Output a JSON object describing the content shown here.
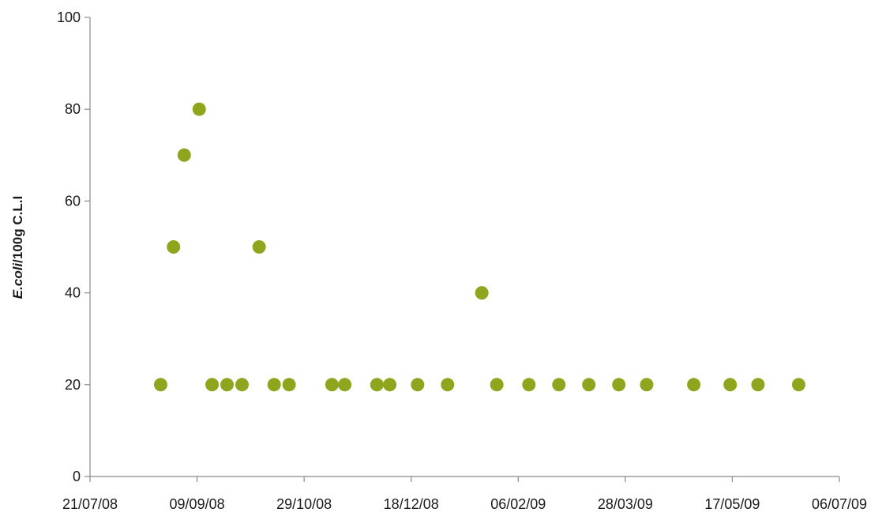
{
  "chart_data": {
    "type": "scatter",
    "title": "",
    "ylabel": {
      "italic": "E.coli",
      "rest": "/100g C.L.I"
    },
    "xlabel": "",
    "xlim": [
      "2008-07-21",
      "2009-07-06"
    ],
    "ylim": [
      0,
      100
    ],
    "x_ticks": [
      "21/07/08",
      "09/09/08",
      "29/10/08",
      "18/12/08",
      "06/02/09",
      "28/03/09",
      "17/05/09",
      "06/07/09"
    ],
    "x_tick_dates": [
      "2008-07-21",
      "2008-09-09",
      "2008-10-29",
      "2008-12-18",
      "2009-02-06",
      "2009-03-28",
      "2009-05-17",
      "2009-07-06"
    ],
    "y_ticks": [
      "0",
      "20",
      "40",
      "60",
      "80",
      "100"
    ],
    "y_tick_values": [
      0,
      20,
      40,
      60,
      80,
      100
    ],
    "grid": false,
    "marker_color": "#8ea51e",
    "series": [
      {
        "points": [
          {
            "x": "2008-08-23",
            "y": 20
          },
          {
            "x": "2008-08-29",
            "y": 50
          },
          {
            "x": "2008-09-03",
            "y": 70
          },
          {
            "x": "2008-09-10",
            "y": 80
          },
          {
            "x": "2008-09-16",
            "y": 20
          },
          {
            "x": "2008-09-23",
            "y": 20
          },
          {
            "x": "2008-09-30",
            "y": 20
          },
          {
            "x": "2008-10-08",
            "y": 50
          },
          {
            "x": "2008-10-15",
            "y": 20
          },
          {
            "x": "2008-10-22",
            "y": 20
          },
          {
            "x": "2008-11-11",
            "y": 20
          },
          {
            "x": "2008-11-17",
            "y": 20
          },
          {
            "x": "2008-12-02",
            "y": 20
          },
          {
            "x": "2008-12-08",
            "y": 20
          },
          {
            "x": "2008-12-21",
            "y": 20
          },
          {
            "x": "2009-01-04",
            "y": 20
          },
          {
            "x": "2009-01-20",
            "y": 40
          },
          {
            "x": "2009-01-27",
            "y": 20
          },
          {
            "x": "2009-02-11",
            "y": 20
          },
          {
            "x": "2009-02-25",
            "y": 20
          },
          {
            "x": "2009-03-11",
            "y": 20
          },
          {
            "x": "2009-03-25",
            "y": 20
          },
          {
            "x": "2009-04-07",
            "y": 20
          },
          {
            "x": "2009-04-29",
            "y": 20
          },
          {
            "x": "2009-05-16",
            "y": 20
          },
          {
            "x": "2009-05-29",
            "y": 20
          },
          {
            "x": "2009-06-17",
            "y": 20
          }
        ]
      }
    ]
  }
}
